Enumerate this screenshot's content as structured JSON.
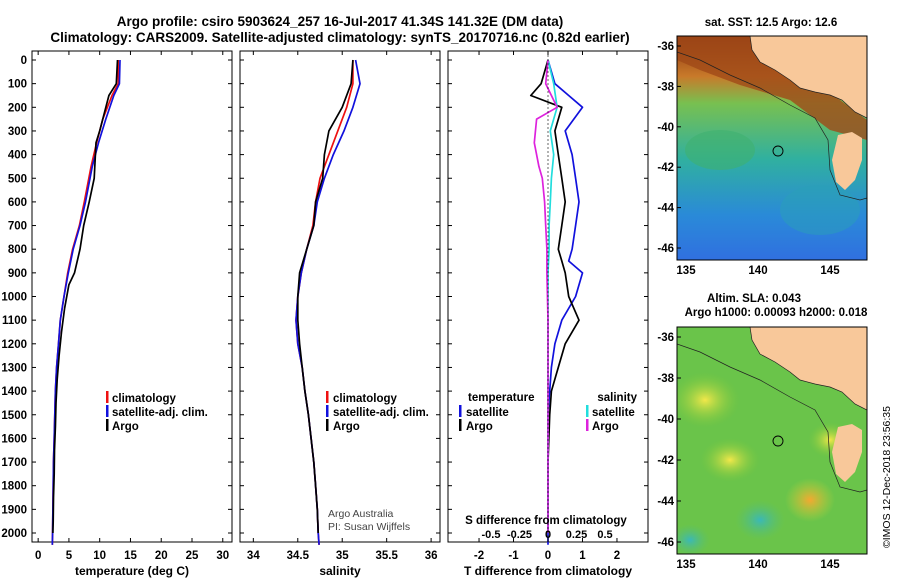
{
  "header": {
    "line1": "Argo profile: csiro 5903624_257 16-Jul-2017 41.34S 141.32E (DM data)",
    "line2": "Climatology: CARS2009. Satellite-adjusted climatology: synTS_20170716.nc (0.82d earlier)"
  },
  "colors": {
    "climatology": "#ee1111",
    "satellite": "#1111dd",
    "argo": "#000000",
    "satellite_s": "#22dddd",
    "argo_s": "#dd22dd",
    "land": "#f8c89a"
  },
  "depth_ticks": [
    "0",
    "100",
    "200",
    "300",
    "400",
    "500",
    "600",
    "700",
    "800",
    "900",
    "1000",
    "1100",
    "1200",
    "1300",
    "1400",
    "1500",
    "1600",
    "1700",
    "1800",
    "1900",
    "2000"
  ],
  "temp_panel": {
    "xlabel": "temperature (deg C)",
    "ticks": [
      "0",
      "5",
      "10",
      "15",
      "20",
      "25",
      "30"
    ],
    "legend": [
      "climatology",
      "satellite-adj. clim.",
      "Argo"
    ]
  },
  "sal_panel": {
    "xlabel": "salinity",
    "ticks": [
      "34",
      "34.5",
      "35",
      "35.5",
      "36"
    ],
    "legend": [
      "climatology",
      "satellite-adj. clim.",
      "Argo"
    ],
    "credit1": "Argo Australia",
    "credit2": "PI: Susan Wijffels"
  },
  "diff_panel": {
    "xlabel": "T difference from climatology",
    "sublabel": "S difference from climatology",
    "t_ticks": [
      "-2",
      "-1",
      "0",
      "1",
      "2"
    ],
    "s_ticks": [
      "-0.5",
      "-0.25",
      "0",
      "0.25",
      "0.5"
    ],
    "legend_t_title": "temperature",
    "legend_s_title": "salinity",
    "legend_t": [
      "satellite",
      "Argo"
    ],
    "legend_s": [
      "satellite",
      "Argo"
    ]
  },
  "map_top": {
    "title": "sat. SST: 12.5 Argo: 12.6",
    "lat_ticks": [
      "-36",
      "-38",
      "-40",
      "-42",
      "-44",
      "-46"
    ],
    "lon_ticks": [
      "135",
      "140",
      "145"
    ]
  },
  "map_bottom": {
    "title1": "Altim. SLA: 0.043",
    "title2": "Argo h1000: 0.00093 h2000: 0.018",
    "lat_ticks": [
      "-36",
      "-38",
      "-40",
      "-42",
      "-44",
      "-46"
    ],
    "lon_ticks": [
      "135",
      "140",
      "145"
    ]
  },
  "watermark": "©IMOS 12-Dec-2018 23:56:35",
  "chart_data": [
    {
      "type": "line",
      "xlabel": "temperature (deg C)",
      "ylabel": "",
      "xlim": [
        -1,
        31.5
      ],
      "ylim": [
        2050,
        0
      ],
      "series": [
        {
          "name": "climatology",
          "color": "#ee1111",
          "x": [
            13.0,
            13.0,
            12.0,
            10.5,
            9.5,
            8.6,
            7.5,
            6.7,
            5.6,
            4.8,
            4.2,
            3.6,
            3.3,
            3.0,
            2.8,
            2.7,
            2.6,
            2.5,
            2.45,
            2.4,
            2.35,
            2.3
          ],
          "y": [
            0,
            100,
            150,
            250,
            350,
            450,
            600,
            700,
            800,
            900,
            1000,
            1100,
            1200,
            1300,
            1400,
            1500,
            1600,
            1700,
            1800,
            1900,
            2000,
            2050
          ]
        },
        {
          "name": "satellite-adj. clim.",
          "color": "#1111dd",
          "x": [
            13.3,
            13.2,
            12.3,
            11.0,
            9.8,
            8.8,
            7.7,
            6.8,
            5.7,
            4.9,
            4.2,
            3.6,
            3.3,
            3.0,
            2.8,
            2.7,
            2.6,
            2.5,
            2.45,
            2.4,
            2.35,
            2.3
          ],
          "y": [
            0,
            100,
            150,
            250,
            350,
            450,
            600,
            700,
            800,
            900,
            1000,
            1100,
            1200,
            1300,
            1400,
            1500,
            1600,
            1700,
            1800,
            1900,
            2000,
            2050
          ]
        },
        {
          "name": "Argo",
          "color": "#000000",
          "x": [
            12.9,
            12.7,
            11.5,
            10.0,
            9.4,
            9.1,
            8.3,
            7.4,
            6.8,
            5.9,
            5.0,
            4.3,
            3.8,
            3.4,
            3.1,
            2.9,
            2.8,
            2.65,
            2.6,
            2.5,
            2.45,
            2.4
          ],
          "y": [
            0,
            100,
            150,
            300,
            350,
            500,
            600,
            700,
            800,
            900,
            950,
            1050,
            1150,
            1250,
            1350,
            1450,
            1550,
            1650,
            1750,
            1850,
            1950,
            2000
          ]
        }
      ]
    },
    {
      "type": "line",
      "xlabel": "salinity",
      "ylabel": "",
      "xlim": [
        33.85,
        36.1
      ],
      "ylim": [
        2050,
        0
      ],
      "series": [
        {
          "name": "climatology",
          "color": "#ee1111",
          "x": [
            35.12,
            35.12,
            35.05,
            34.95,
            34.85,
            34.75,
            34.7,
            34.67,
            34.6,
            34.54,
            34.5,
            34.48,
            34.5,
            34.55,
            34.58,
            34.62,
            34.65,
            34.68,
            34.7,
            34.72,
            34.73,
            34.74
          ],
          "y": [
            0,
            100,
            200,
            300,
            400,
            500,
            600,
            700,
            800,
            900,
            1000,
            1100,
            1200,
            1300,
            1400,
            1500,
            1600,
            1700,
            1800,
            1900,
            2000,
            2050
          ]
        },
        {
          "name": "satellite-adj. clim.",
          "color": "#1111dd",
          "x": [
            35.15,
            35.2,
            35.12,
            35.02,
            34.9,
            34.8,
            34.72,
            34.68,
            34.6,
            34.54,
            34.5,
            34.48,
            34.5,
            34.55,
            34.58,
            34.62,
            34.65,
            34.68,
            34.7,
            34.72,
            34.73,
            34.74
          ],
          "y": [
            0,
            100,
            200,
            300,
            400,
            500,
            600,
            700,
            800,
            900,
            1000,
            1100,
            1200,
            1300,
            1400,
            1500,
            1600,
            1700,
            1800,
            1900,
            2000,
            2050
          ]
        },
        {
          "name": "Argo",
          "color": "#000000",
          "x": [
            35.12,
            35.1,
            35.0,
            34.85,
            34.8,
            34.78,
            34.7,
            34.68,
            34.6,
            34.52,
            34.5,
            34.5,
            34.52,
            34.55,
            34.58,
            34.62,
            34.65,
            34.68,
            34.7,
            34.72,
            34.73
          ],
          "y": [
            0,
            100,
            200,
            300,
            400,
            500,
            600,
            700,
            800,
            900,
            1000,
            1100,
            1200,
            1300,
            1400,
            1500,
            1600,
            1700,
            1800,
            1900,
            2000
          ]
        }
      ]
    },
    {
      "type": "line",
      "xlabel": "T difference from climatology",
      "ylabel": "",
      "xlim": [
        -2.9,
        2.9
      ],
      "ylim": [
        2050,
        0
      ],
      "series": [
        {
          "name": "temperature satellite",
          "color": "#1111dd",
          "x": [
            0,
            0.2,
            0.6,
            1.0,
            0.5,
            0.7,
            0.8,
            0.9,
            0.8,
            0.7,
            0.6,
            1.0,
            0.8,
            0.4,
            0.2,
            0.1,
            0.05,
            0,
            0,
            0,
            0
          ],
          "y": [
            0,
            100,
            150,
            200,
            300,
            400,
            500,
            600,
            700,
            800,
            850,
            900,
            1000,
            1100,
            1200,
            1300,
            1400,
            1500,
            1700,
            1900,
            2050
          ]
        },
        {
          "name": "temperature Argo",
          "color": "#000000",
          "x": [
            0,
            -0.2,
            -0.5,
            0.4,
            0.2,
            0.3,
            0.4,
            0.5,
            0.4,
            0.3,
            0.4,
            0.5,
            0.6,
            0.9,
            0.5,
            0.3,
            0.1,
            0.05,
            0,
            0,
            0
          ],
          "y": [
            0,
            100,
            150,
            200,
            300,
            400,
            500,
            600,
            700,
            800,
            850,
            900,
            1000,
            1100,
            1200,
            1300,
            1400,
            1500,
            1700,
            1900,
            2000
          ]
        },
        {
          "name": "salinity satellite",
          "color": "#22dddd",
          "x": [
            0,
            0.05,
            0.08,
            0.02,
            0.05,
            0.03,
            0.02,
            0.01,
            0.01,
            0,
            0,
            0,
            0,
            0,
            0,
            0
          ],
          "y": [
            0,
            100,
            200,
            300,
            400,
            500,
            600,
            700,
            800,
            900,
            1000,
            1200,
            1400,
            1600,
            1800,
            2000
          ]
        },
        {
          "name": "salinity Argo",
          "color": "#dd22dd",
          "x": [
            0,
            -0.02,
            0.08,
            -0.1,
            -0.12,
            -0.08,
            -0.05,
            -0.03,
            -0.02,
            -0.01,
            -0.01,
            0,
            0,
            0,
            0
          ],
          "y": [
            0,
            100,
            200,
            250,
            350,
            450,
            500,
            600,
            700,
            800,
            900,
            1100,
            1400,
            1700,
            2000
          ]
        }
      ]
    }
  ]
}
